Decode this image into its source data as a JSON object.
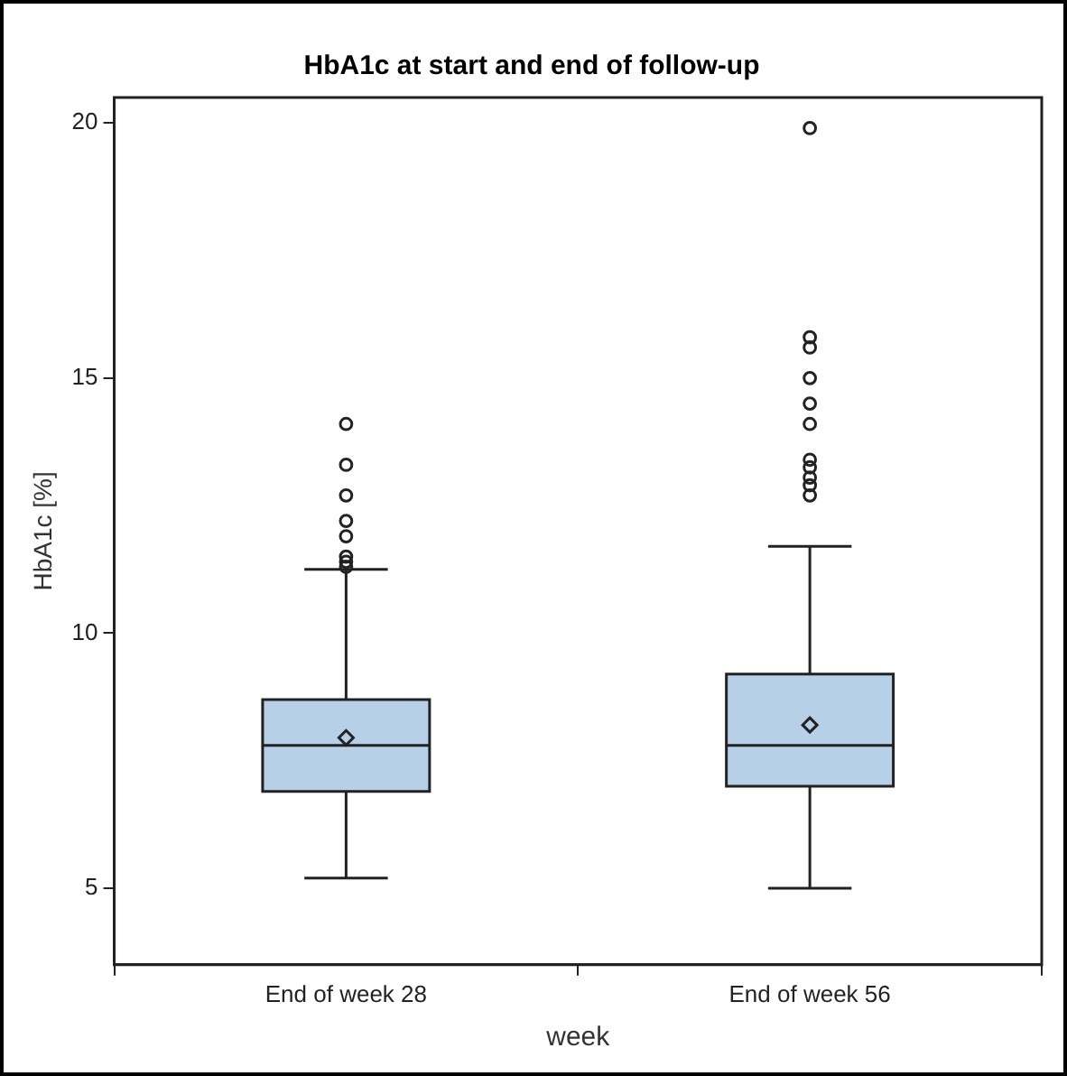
{
  "chart_data": {
    "type": "box",
    "title": "HbA1c at start and end of follow-up",
    "xlabel": "week",
    "ylabel": "HbA1c [%]",
    "categories": [
      "End of week 28",
      "End of week 56"
    ],
    "color": "#b8cfe8",
    "boxes": [
      {
        "low": 5.2,
        "q1": 6.9,
        "median": 7.8,
        "q3": 8.7,
        "high": 11.25,
        "mean": 7.95,
        "outliers": [
          14.1,
          13.3,
          12.7,
          12.2,
          11.9,
          11.5,
          11.4,
          11.3
        ]
      },
      {
        "low": 5.0,
        "q1": 7.0,
        "median": 7.8,
        "q3": 9.2,
        "high": 11.7,
        "mean": 8.2,
        "outliers": [
          19.9,
          15.8,
          15.6,
          15.0,
          14.5,
          14.1,
          13.4,
          13.25,
          13.05,
          12.9,
          12.7
        ]
      }
    ],
    "ylim": [
      3.5,
      20.5
    ],
    "yticks": [
      5,
      10,
      15,
      20
    ],
    "grid": false,
    "legend": false,
    "marker": "circle"
  }
}
